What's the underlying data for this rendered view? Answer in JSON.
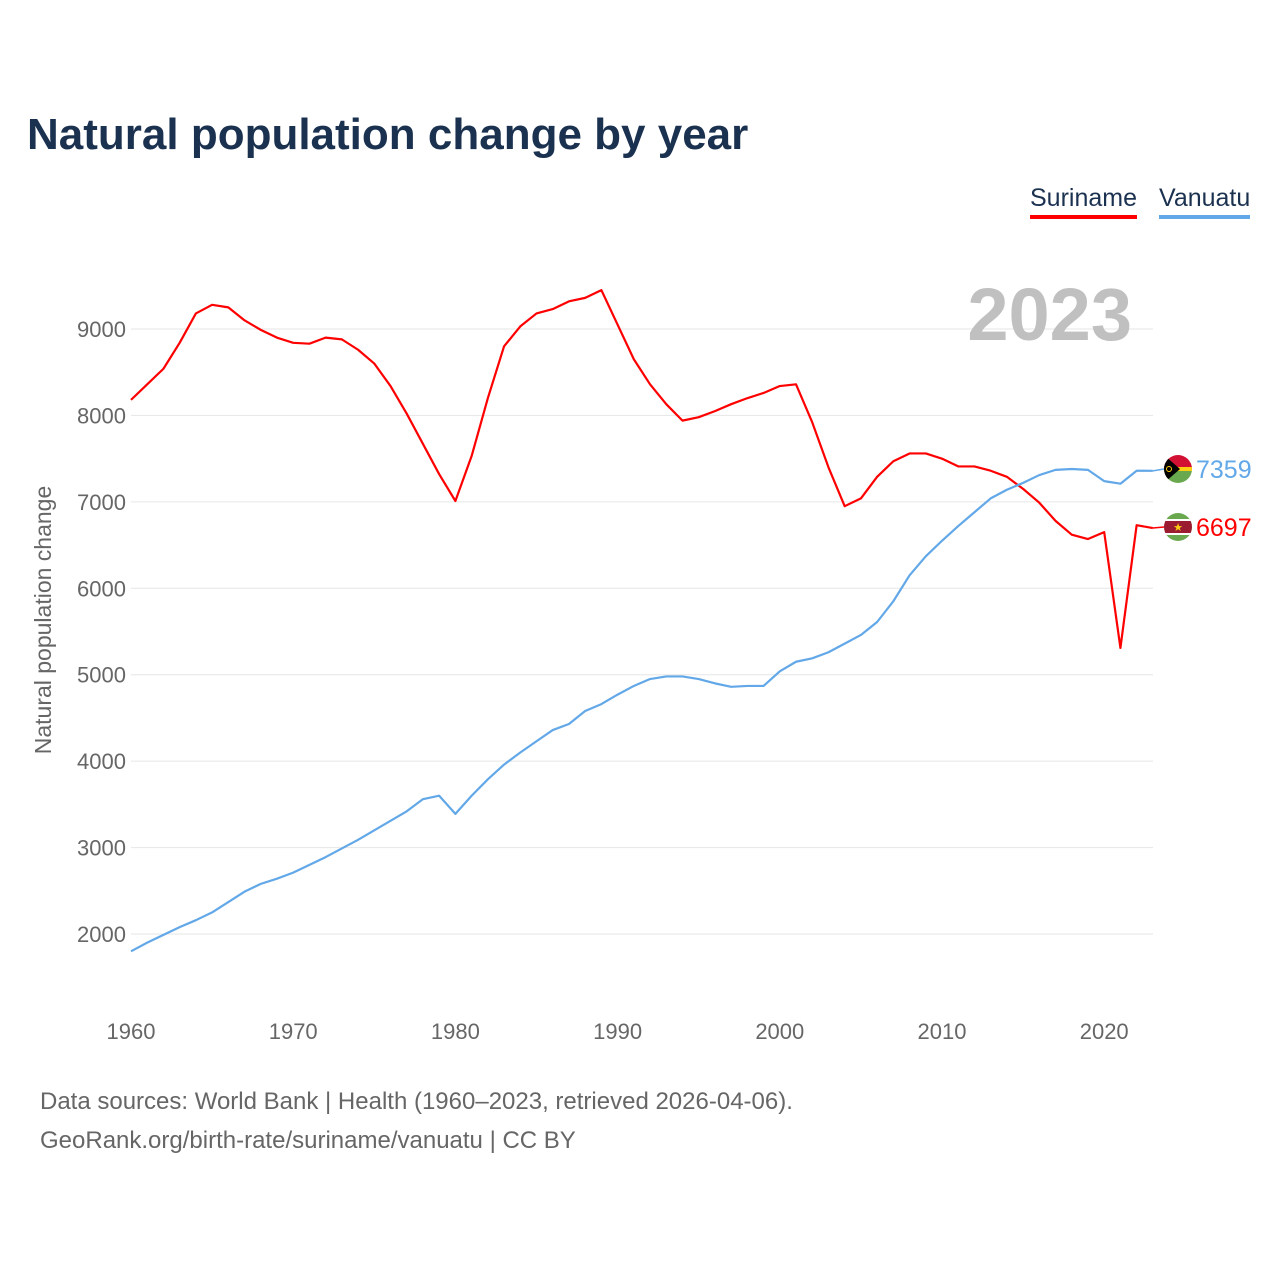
{
  "chart_data": {
    "type": "line",
    "title": "Natural population change by year",
    "ylabel": "Natural population change",
    "xlabel": "",
    "year_watermark": "2023",
    "xlim": [
      1960,
      2023
    ],
    "ylim": [
      1400,
      9900
    ],
    "x_ticks": [
      1960,
      1970,
      1980,
      1990,
      2000,
      2010,
      2020
    ],
    "y_ticks": [
      2000,
      3000,
      4000,
      5000,
      6000,
      7000,
      8000,
      9000
    ],
    "grid": true,
    "legend_position": "top-right",
    "x": [
      1960,
      1961,
      1962,
      1963,
      1964,
      1965,
      1966,
      1967,
      1968,
      1969,
      1970,
      1971,
      1972,
      1973,
      1974,
      1975,
      1976,
      1977,
      1978,
      1979,
      1980,
      1981,
      1982,
      1983,
      1984,
      1985,
      1986,
      1987,
      1988,
      1989,
      1990,
      1991,
      1992,
      1993,
      1994,
      1995,
      1996,
      1997,
      1998,
      1999,
      2000,
      2001,
      2002,
      2003,
      2004,
      2005,
      2006,
      2007,
      2008,
      2009,
      2010,
      2011,
      2012,
      2013,
      2014,
      2015,
      2016,
      2017,
      2018,
      2019,
      2020,
      2021,
      2022,
      2023
    ],
    "series": [
      {
        "name": "Suriname",
        "color": "#ff0000",
        "end_label": "6697",
        "values": [
          8180,
          8360,
          8540,
          8840,
          9180,
          9280,
          9250,
          9100,
          8990,
          8900,
          8840,
          8830,
          8900,
          8880,
          8760,
          8600,
          8340,
          8020,
          7670,
          7320,
          7010,
          7530,
          8200,
          8800,
          9030,
          9180,
          9230,
          9320,
          9360,
          9450,
          9050,
          8650,
          8360,
          8130,
          7940,
          7980,
          8050,
          8130,
          8200,
          8260,
          8340,
          8360,
          7920,
          7400,
          6950,
          7040,
          7290,
          7470,
          7560,
          7560,
          7500,
          7410,
          7410,
          7360,
          7290,
          7150,
          6990,
          6780,
          6620,
          6570,
          6650,
          5310,
          6730,
          6697
        ]
      },
      {
        "name": "Vanuatu",
        "color": "#62a8e8",
        "end_label": "7359",
        "values": [
          1800,
          1900,
          1990,
          2080,
          2160,
          2250,
          2370,
          2490,
          2580,
          2640,
          2710,
          2800,
          2890,
          2990,
          3090,
          3200,
          3310,
          3420,
          3560,
          3600,
          3390,
          3600,
          3790,
          3960,
          4100,
          4230,
          4360,
          4430,
          4580,
          4660,
          4770,
          4870,
          4950,
          4980,
          4980,
          4950,
          4900,
          4860,
          4870,
          4870,
          5040,
          5150,
          5190,
          5260,
          5360,
          5460,
          5610,
          5850,
          6150,
          6370,
          6550,
          6720,
          6880,
          7040,
          7140,
          7220,
          7310,
          7370,
          7380,
          7370,
          7240,
          7210,
          7360,
          7359
        ]
      }
    ]
  },
  "footer": {
    "line1": "Data sources: World Bank | Health (1960–2023, retrieved 2026-04-06).",
    "line2": "GeoRank.org/birth-rate/suriname/vanuatu | CC BY"
  }
}
